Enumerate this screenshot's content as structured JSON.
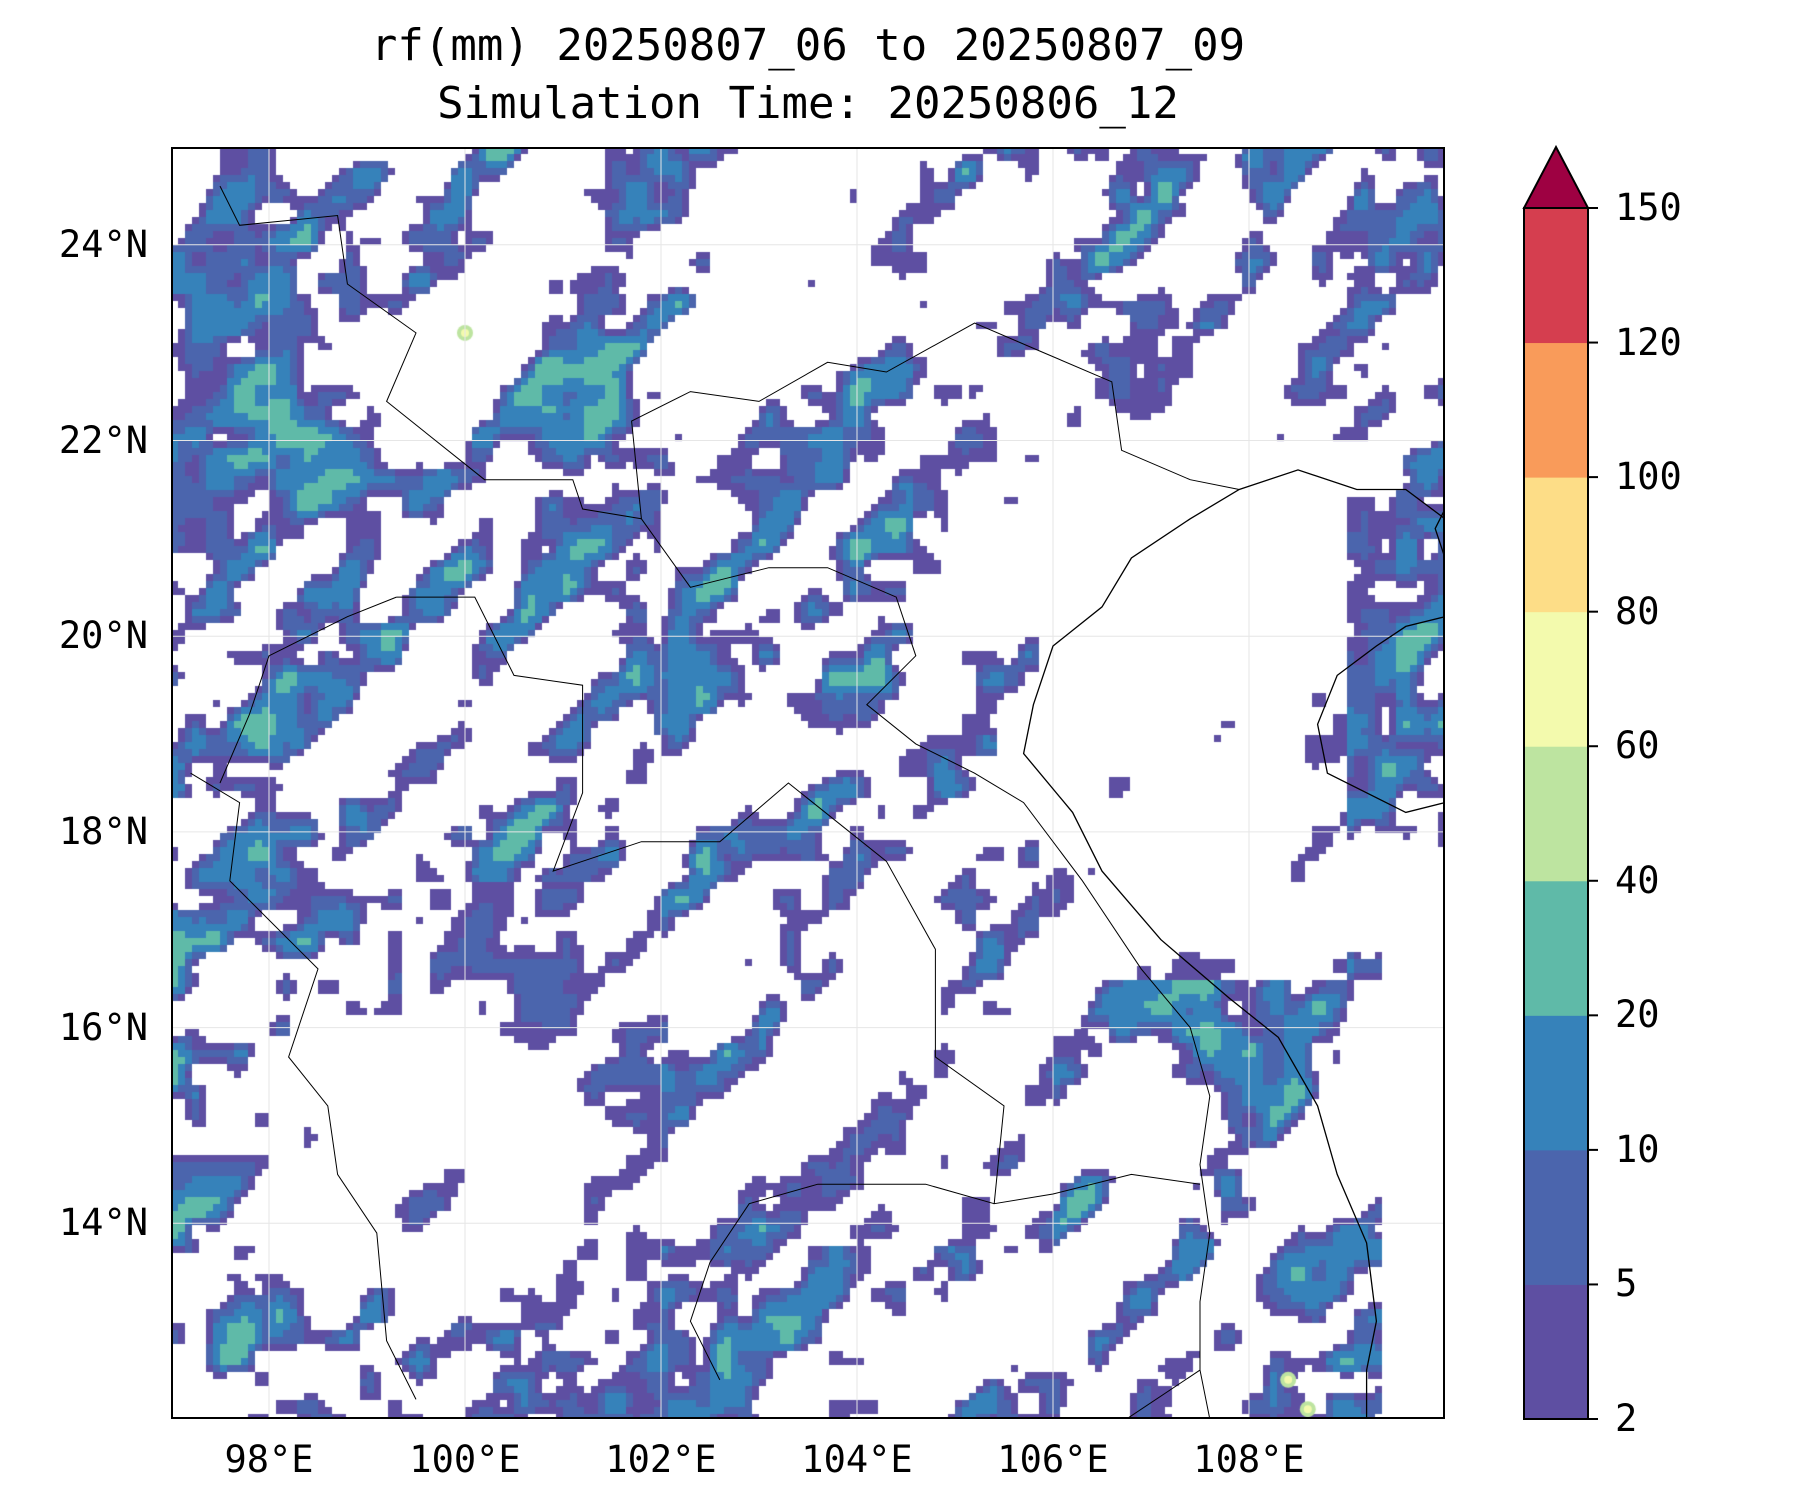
{
  "title": {
    "line1": "rf(mm) 20250807_06 to 20250807_09",
    "line2": "Simulation Time: 20250806_12"
  },
  "map": {
    "extent": {
      "lon_min": 97,
      "lon_max": 110,
      "lat_min": 12,
      "lat_max": 25
    },
    "lat_ticks": [
      {
        "value": 24,
        "label": "24°N"
      },
      {
        "value": 22,
        "label": "22°N"
      },
      {
        "value": 20,
        "label": "20°N"
      },
      {
        "value": 18,
        "label": "18°N"
      },
      {
        "value": 16,
        "label": "16°N"
      },
      {
        "value": 14,
        "label": "14°N"
      }
    ],
    "lon_ticks": [
      {
        "value": 98,
        "label": "98°E"
      },
      {
        "value": 100,
        "label": "100°E"
      },
      {
        "value": 102,
        "label": "102°E"
      },
      {
        "value": 104,
        "label": "104°E"
      },
      {
        "value": 106,
        "label": "106°E"
      },
      {
        "value": 108,
        "label": "108°E"
      }
    ]
  },
  "colorbar": {
    "levels": [
      "2",
      "5",
      "10",
      "20",
      "40",
      "60",
      "80",
      "100",
      "120",
      "150"
    ],
    "colors": [
      "#5e4fa2",
      "#4b65ad",
      "#3682ba",
      "#5fbaa8",
      "#bde4a0",
      "#f3faad",
      "#fddd87",
      "#f99b5a",
      "#d53e4f"
    ],
    "extend_color": "#9e0142"
  }
}
